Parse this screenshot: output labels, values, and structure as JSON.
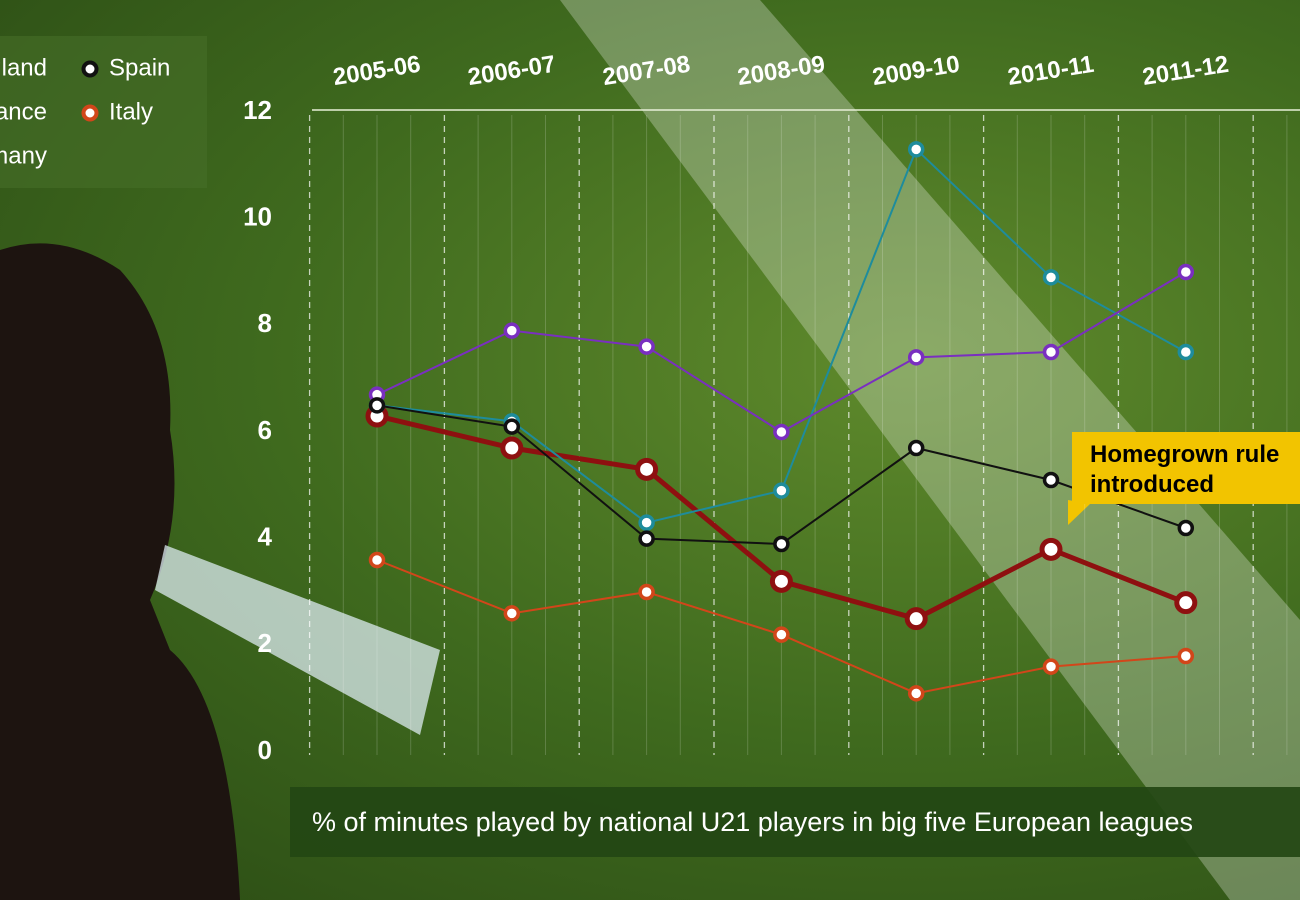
{
  "chart_data": {
    "type": "line",
    "title": "% of minutes played by national U21 players in big five European leagues",
    "annotation": "Homegrown rule introduced",
    "categories": [
      "2005-06",
      "2006-07",
      "2007-08",
      "2008-09",
      "2009-10",
      "2010-11",
      "2011-12"
    ],
    "series": [
      {
        "name": "England",
        "color": "#8e1010",
        "values": [
          6.3,
          5.7,
          5.3,
          3.2,
          2.5,
          3.8,
          2.8
        ]
      },
      {
        "name": "France",
        "color": "#1e8c9c",
        "values": [
          6.5,
          6.2,
          4.3,
          4.9,
          11.3,
          8.9,
          7.5
        ]
      },
      {
        "name": "Germany",
        "color": "#7a2fc0",
        "values": [
          6.7,
          7.9,
          7.6,
          6.0,
          7.4,
          7.5,
          9.0
        ]
      },
      {
        "name": "Spain",
        "color": "#111111",
        "values": [
          6.5,
          6.1,
          4.0,
          3.9,
          5.7,
          5.1,
          4.2
        ]
      },
      {
        "name": "Italy",
        "color": "#d2461a",
        "values": [
          3.6,
          2.6,
          3.0,
          2.2,
          1.1,
          1.6,
          1.8
        ]
      }
    ],
    "ylim": [
      0,
      12
    ],
    "yticks": [
      0,
      2,
      4,
      6,
      8,
      10,
      12
    ]
  }
}
